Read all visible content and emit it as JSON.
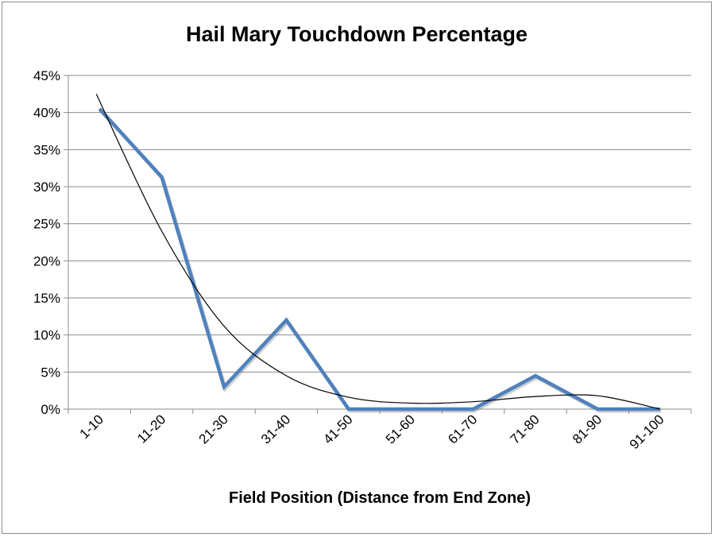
{
  "chart_data": {
    "type": "line",
    "title": "Hail Mary Touchdown Percentage",
    "xlabel": "Field Position (Distance from End Zone)",
    "ylabel": "",
    "categories": [
      "1-10",
      "11-20",
      "21-30",
      "31-40",
      "41-50",
      "51-60",
      "61-70",
      "71-80",
      "81-90",
      "91-100"
    ],
    "yticks": [
      "0%",
      "5%",
      "10%",
      "15%",
      "20%",
      "25%",
      "30%",
      "35%",
      "40%",
      "45%"
    ],
    "ylim": [
      0,
      45
    ],
    "grid": true,
    "legend": "none",
    "series": [
      {
        "values": [
          40.5,
          31.3,
          3.0,
          12.0,
          0,
          0,
          0,
          4.5,
          0,
          0
        ],
        "color": "#4f81bd"
      }
    ],
    "trendline": {
      "type": "polynomial",
      "color": "#000000",
      "values": [
        42.5,
        24.0,
        11.2,
        4.5,
        1.6,
        0.8,
        1.0,
        1.7,
        1.8,
        0.0
      ]
    }
  }
}
